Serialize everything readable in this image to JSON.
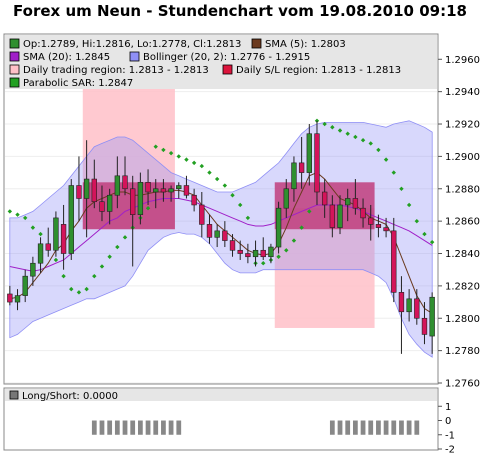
{
  "title": "Forex um Neun - Stundenchart vom 19.08.2010 09:18",
  "colors": {
    "up": "#2f8f2f",
    "down": "#d4145a",
    "sma5": "#6b3a1f",
    "sma20": "#a020c8",
    "bollinger": "#8f8ff5",
    "trading_region": "#ffc0c8",
    "sl_region": "#dc143c",
    "sar": "#22a022",
    "longshort": "#888888"
  },
  "legend": [
    {
      "key": "ohlc",
      "text": "Op:1.2789, Hi:1.2816, Lo:1.2778, Cl:1.2813",
      "color": "#2f8f2f"
    },
    {
      "key": "sma5",
      "text": "SMA (5): 1.2803",
      "color": "#6b3a1f"
    },
    {
      "key": "sma20",
      "text": "SMA (20): 1.2845",
      "color": "#a020c8"
    },
    {
      "key": "bollinger",
      "text": "Bollinger (20, 2): 1.2776 - 1.2915",
      "color": "#8f8ff5"
    },
    {
      "key": "trading",
      "text": "Daily trading region: 1.2813 - 1.2813",
      "color": "#ffc0c8"
    },
    {
      "key": "sl",
      "text": "Daily S/L region: 1.2813 - 1.2813",
      "color": "#dc143c"
    },
    {
      "key": "sar",
      "text": "Parabolic SAR: 1.2847",
      "color": "#22a022"
    }
  ],
  "sub_legend": {
    "text": "Long/Short: 0.0000",
    "color": "#777777"
  },
  "chart_data": [
    {
      "type": "candlestick",
      "title": "Forex um Neun - Stundenchart vom 19.08.2010 09:18",
      "ylim": [
        1.276,
        1.2975
      ],
      "yticks": [
        "1.2760",
        "1.2780",
        "1.2800",
        "1.2820",
        "1.2840",
        "1.2860",
        "1.2880",
        "1.2900",
        "1.2920",
        "1.2940",
        "1.2960"
      ],
      "candles": [
        [
          1.2815,
          1.282,
          1.2808,
          1.281
        ],
        [
          1.281,
          1.2818,
          1.2805,
          1.2814
        ],
        [
          1.2814,
          1.283,
          1.281,
          1.2826
        ],
        [
          1.2826,
          1.2838,
          1.282,
          1.2834
        ],
        [
          1.2834,
          1.285,
          1.2828,
          1.2846
        ],
        [
          1.2846,
          1.2856,
          1.2838,
          1.2842
        ],
        [
          1.2842,
          1.2866,
          1.2838,
          1.2862
        ],
        [
          1.2858,
          1.287,
          1.283,
          1.284
        ],
        [
          1.284,
          1.2886,
          1.2836,
          1.2882
        ],
        [
          1.2882,
          1.29,
          1.286,
          1.2874
        ],
        [
          1.2874,
          1.291,
          1.285,
          1.2886
        ],
        [
          1.2886,
          1.2898,
          1.2868,
          1.2872
        ],
        [
          1.2872,
          1.2882,
          1.286,
          1.2866
        ],
        [
          1.2866,
          1.288,
          1.2858,
          1.2876
        ],
        [
          1.2876,
          1.29,
          1.2868,
          1.2888
        ],
        [
          1.2888,
          1.29,
          1.2876,
          1.288
        ],
        [
          1.288,
          1.2888,
          1.2832,
          1.2864
        ],
        [
          1.2864,
          1.289,
          1.2858,
          1.2884
        ],
        [
          1.2884,
          1.2892,
          1.287,
          1.2878
        ],
        [
          1.2878,
          1.2886,
          1.2868,
          1.288
        ],
        [
          1.288,
          1.2886,
          1.2872,
          1.2878
        ],
        [
          1.2878,
          1.2882,
          1.2872,
          1.288
        ],
        [
          1.288,
          1.2884,
          1.2874,
          1.2882
        ],
        [
          1.2882,
          1.2888,
          1.2874,
          1.2876
        ],
        [
          1.2876,
          1.288,
          1.2866,
          1.287
        ],
        [
          1.287,
          1.2878,
          1.285,
          1.2858
        ],
        [
          1.2858,
          1.2864,
          1.2846,
          1.285
        ],
        [
          1.285,
          1.2858,
          1.2844,
          1.2854
        ],
        [
          1.2854,
          1.286,
          1.2844,
          1.2848
        ],
        [
          1.2848,
          1.2852,
          1.2838,
          1.2842
        ],
        [
          1.2842,
          1.2848,
          1.2836,
          1.284
        ],
        [
          1.284,
          1.2846,
          1.2834,
          1.2838
        ],
        [
          1.2838,
          1.2848,
          1.2832,
          1.2842
        ],
        [
          1.2842,
          1.285,
          1.2836,
          1.2838
        ],
        [
          1.2838,
          1.2846,
          1.2834,
          1.2844
        ],
        [
          1.2844,
          1.2872,
          1.284,
          1.2868
        ],
        [
          1.2868,
          1.2886,
          1.2862,
          1.288
        ],
        [
          1.288,
          1.29,
          1.2872,
          1.2896
        ],
        [
          1.2896,
          1.2912,
          1.288,
          1.289
        ],
        [
          1.289,
          1.292,
          1.2882,
          1.2914
        ],
        [
          1.2914,
          1.2922,
          1.287,
          1.2878
        ],
        [
          1.2878,
          1.2886,
          1.2862,
          1.287
        ],
        [
          1.287,
          1.2876,
          1.285,
          1.2856
        ],
        [
          1.2856,
          1.2876,
          1.2852,
          1.287
        ],
        [
          1.287,
          1.288,
          1.286,
          1.2874
        ],
        [
          1.2874,
          1.2886,
          1.2864,
          1.2868
        ],
        [
          1.2868,
          1.2874,
          1.2856,
          1.2862
        ],
        [
          1.2862,
          1.287,
          1.2848,
          1.2858
        ],
        [
          1.2858,
          1.2864,
          1.285,
          1.2856
        ],
        [
          1.2856,
          1.2862,
          1.285,
          1.2854
        ],
        [
          1.2854,
          1.2862,
          1.281,
          1.2816
        ],
        [
          1.2816,
          1.2826,
          1.2778,
          1.2804
        ],
        [
          1.2804,
          1.2818,
          1.2798,
          1.2812
        ],
        [
          1.2812,
          1.2818,
          1.2796,
          1.28
        ],
        [
          1.28,
          1.281,
          1.2784,
          1.279
        ],
        [
          1.2789,
          1.2816,
          1.2778,
          1.2813
        ]
      ],
      "sma5": [
        1.2812,
        1.2813,
        1.2816,
        1.2822,
        1.2828,
        1.2834,
        1.2842,
        1.2846,
        1.2854,
        1.286,
        1.2868,
        1.2872,
        1.2874,
        1.2876,
        1.2878,
        1.2878,
        1.2876,
        1.2876,
        1.2877,
        1.2878,
        1.2878,
        1.2879,
        1.2879,
        1.2878,
        1.2876,
        1.287,
        1.2864,
        1.2858,
        1.2854,
        1.285,
        1.2846,
        1.2842,
        1.284,
        1.2839,
        1.284,
        1.2846,
        1.2856,
        1.2868,
        1.2878,
        1.2888,
        1.289,
        1.2886,
        1.288,
        1.2874,
        1.2872,
        1.287,
        1.2866,
        1.2862,
        1.286,
        1.2858,
        1.285,
        1.2838,
        1.2826,
        1.2814,
        1.2806,
        1.2803
      ],
      "sma20": [
        1.2832,
        1.2831,
        1.283,
        1.2829,
        1.283,
        1.2832,
        1.2834,
        1.2836,
        1.284,
        1.2844,
        1.2848,
        1.2852,
        1.2856,
        1.286,
        1.2862,
        1.2866,
        1.2868,
        1.287,
        1.2872,
        1.2873,
        1.2874,
        1.2874,
        1.2874,
        1.2873,
        1.2872,
        1.287,
        1.2868,
        1.2866,
        1.2864,
        1.2862,
        1.286,
        1.2858,
        1.2857,
        1.2857,
        1.2858,
        1.286,
        1.2862,
        1.2864,
        1.2866,
        1.2868,
        1.287,
        1.287,
        1.287,
        1.287,
        1.2869,
        1.2868,
        1.2866,
        1.2864,
        1.2862,
        1.286,
        1.2858,
        1.2856,
        1.2854,
        1.2851,
        1.2848,
        1.2845
      ],
      "boll_upper": [
        1.2862,
        1.2862,
        1.2864,
        1.2866,
        1.287,
        1.2874,
        1.2878,
        1.2882,
        1.2888,
        1.2894,
        1.29,
        1.2906,
        1.2908,
        1.291,
        1.2912,
        1.2912,
        1.291,
        1.2906,
        1.2902,
        1.2898,
        1.2894,
        1.289,
        1.2888,
        1.2886,
        1.2884,
        1.2882,
        1.288,
        1.2878,
        1.2878,
        1.2878,
        1.288,
        1.2882,
        1.2884,
        1.2888,
        1.2892,
        1.2896,
        1.2902,
        1.2908,
        1.2914,
        1.2918,
        1.292,
        1.2921,
        1.2921,
        1.2921,
        1.2921,
        1.2921,
        1.2921,
        1.292,
        1.2919,
        1.2918,
        1.292,
        1.2921,
        1.2922,
        1.292,
        1.2918,
        1.2915
      ],
      "boll_lower": [
        1.2788,
        1.279,
        1.2794,
        1.2798,
        1.28,
        1.2802,
        1.2804,
        1.2806,
        1.2808,
        1.281,
        1.2812,
        1.2812,
        1.2814,
        1.2816,
        1.2818,
        1.282,
        1.2826,
        1.2834,
        1.2842,
        1.2846,
        1.285,
        1.2852,
        1.2853,
        1.2852,
        1.2852,
        1.285,
        1.2846,
        1.284,
        1.2834,
        1.283,
        1.2828,
        1.2828,
        1.2828,
        1.283,
        1.283,
        1.283,
        1.283,
        1.283,
        1.283,
        1.283,
        1.283,
        1.283,
        1.283,
        1.283,
        1.283,
        1.283,
        1.283,
        1.2828,
        1.2826,
        1.2822,
        1.2812,
        1.28,
        1.279,
        1.2784,
        1.2779,
        1.2776
      ],
      "sar": [
        1.2866,
        1.2864,
        1.2862,
        1.2856,
        1.2852,
        1.2844,
        1.2836,
        1.2826,
        1.2818,
        1.2816,
        1.2818,
        1.2826,
        1.2832,
        1.2838,
        1.2844,
        1.285,
        1.2856,
        1.2862,
        1.2868,
        1.2906,
        1.2904,
        1.2902,
        1.29,
        1.2898,
        1.2896,
        1.2894,
        1.289,
        1.2886,
        1.2882,
        1.2876,
        1.287,
        1.2862,
        1.2834,
        1.2834,
        1.2836,
        1.2838,
        1.2842,
        1.2848,
        1.2856,
        1.2866,
        1.2922,
        1.292,
        1.2918,
        1.2916,
        1.2914,
        1.2912,
        1.291,
        1.2908,
        1.2904,
        1.2898,
        1.289,
        1.288,
        1.287,
        1.286,
        1.2852,
        1.2847
      ],
      "trading_regions": [
        {
          "from": 10,
          "to": 21,
          "low": 1.2855,
          "high": 1.2946
        },
        {
          "from": 35,
          "to": 47,
          "low": 1.2794,
          "high": 1.2868
        }
      ],
      "sl_regions": [
        {
          "from": 10,
          "to": 21,
          "low": 1.2855,
          "high": 1.2884
        },
        {
          "from": 35,
          "to": 47,
          "low": 1.2855,
          "high": 1.2884
        }
      ]
    },
    {
      "type": "bar",
      "title": "Long/Short",
      "ylim": [
        -2,
        1.3
      ],
      "yticks": [
        "1",
        "0",
        "-1",
        "-2"
      ],
      "values": [
        0,
        0,
        0,
        0,
        0,
        0,
        0,
        0,
        0,
        0,
        0,
        -1,
        -1,
        -1,
        -1,
        -1,
        -1,
        -1,
        -1,
        -1,
        -1,
        -1,
        -1,
        0,
        0,
        0,
        0,
        0,
        0,
        0,
        0,
        0,
        0,
        0,
        0,
        0,
        0,
        0,
        0,
        0,
        0,
        0,
        -1,
        -1,
        -1,
        -1,
        -1,
        -1,
        -1,
        -1,
        -1,
        -1,
        -1,
        -1,
        0,
        0
      ]
    }
  ]
}
